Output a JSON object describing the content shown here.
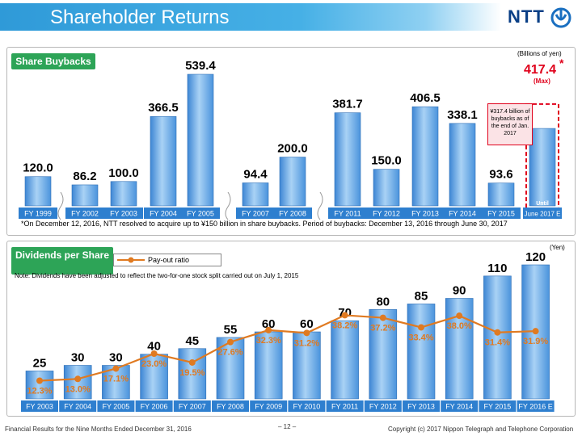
{
  "header": {
    "title": "Shareholder Returns",
    "brand": "NTT"
  },
  "footer": {
    "left": "Financial Results for the Nine Months Ended December 31, 2016",
    "page": "– 12 –",
    "right": "Copyright (c) 2017 Nippon Telegraph and Telephone Corporation"
  },
  "colors": {
    "bar": "#5ba0e0",
    "line": "#e07a21",
    "label_bg": "#2e7fcf",
    "tag": "#2da457",
    "max": "#e0001b"
  },
  "chart_data": [
    {
      "type": "bar",
      "tag": "Share Buybacks",
      "unit": "(Billions of yen)",
      "categories": [
        "FY 1999",
        "FY 2002",
        "FY 2003",
        "FY 2004",
        "FY 2005",
        "FY 2007",
        "FY 2008",
        "FY 2011",
        "FY 2012",
        "FY 2013",
        "FY 2014",
        "FY 2015",
        "Until June 2017 E"
      ],
      "values": [
        120.0,
        86.2,
        100.0,
        366.5,
        539.4,
        94.4,
        200.0,
        381.7,
        150.0,
        406.5,
        338.1,
        93.6,
        317.4
      ],
      "value_labels": [
        "120.0",
        "86.2",
        "100.0",
        "366.5",
        "539.4",
        "94.4",
        "200.0",
        "381.7",
        "150.0",
        "406.5",
        "338.1",
        "93.6",
        ""
      ],
      "label_lines": [
        [
          "FY 1999"
        ],
        [
          "FY 2002"
        ],
        [
          "FY 2003"
        ],
        [
          "FY 2004"
        ],
        [
          "FY 2005"
        ],
        [
          "FY 2007"
        ],
        [
          "FY 2008"
        ],
        [
          "FY 2011"
        ],
        [
          "FY 2012"
        ],
        [
          "FY 2013"
        ],
        [
          "FY 2014"
        ],
        [
          "FY 2015"
        ],
        [
          "Until",
          "June 2017 E"
        ]
      ],
      "max": {
        "value": "417.4",
        "star": "*",
        "label": "(Max)"
      },
      "callout": "¥317.4 billion of buybacks as of the end of Jan. 2017",
      "footnote": "*On December 12, 2016, NTT resolved to acquire up to ¥150 billion in share buybacks. Period of buybacks: December 13, 2016 through June 30, 2017",
      "ylim": [
        0,
        560
      ]
    },
    {
      "type": "bar",
      "tag": "Dividends per Share",
      "unit": "(Yen)",
      "note": "Note: Dividends have been adjusted to reflect the two-for-one stock split carried out on July 1, 2015",
      "categories": [
        "FY 2003",
        "FY 2004",
        "FY 2005",
        "FY 2006",
        "FY 2007",
        "FY 2008",
        "FY 2009",
        "FY 2010",
        "FY 2011",
        "FY 2012",
        "FY 2013",
        "FY 2014",
        "FY 2015",
        "FY 2016 E"
      ],
      "values": [
        25,
        30,
        30,
        40,
        45,
        55,
        60,
        60,
        70,
        80,
        85,
        90,
        110,
        120
      ],
      "series": [
        {
          "name": "Pay-out ratio",
          "type": "line",
          "values": [
            12.3,
            13.0,
            17.1,
            23.0,
            19.5,
            27.6,
            32.3,
            31.2,
            38.2,
            37.2,
            33.4,
            38.0,
            31.4,
            31.9
          ],
          "labels": [
            "12.3%",
            "13.0%",
            "17.1%",
            "23.0%",
            "19.5%",
            "27.6%",
            "32.3%",
            "31.2%",
            "38.2%",
            "37.2%",
            "33.4%",
            "38.0%",
            "31.4%",
            "31.9%"
          ]
        }
      ],
      "ylim": [
        0,
        130
      ]
    }
  ]
}
